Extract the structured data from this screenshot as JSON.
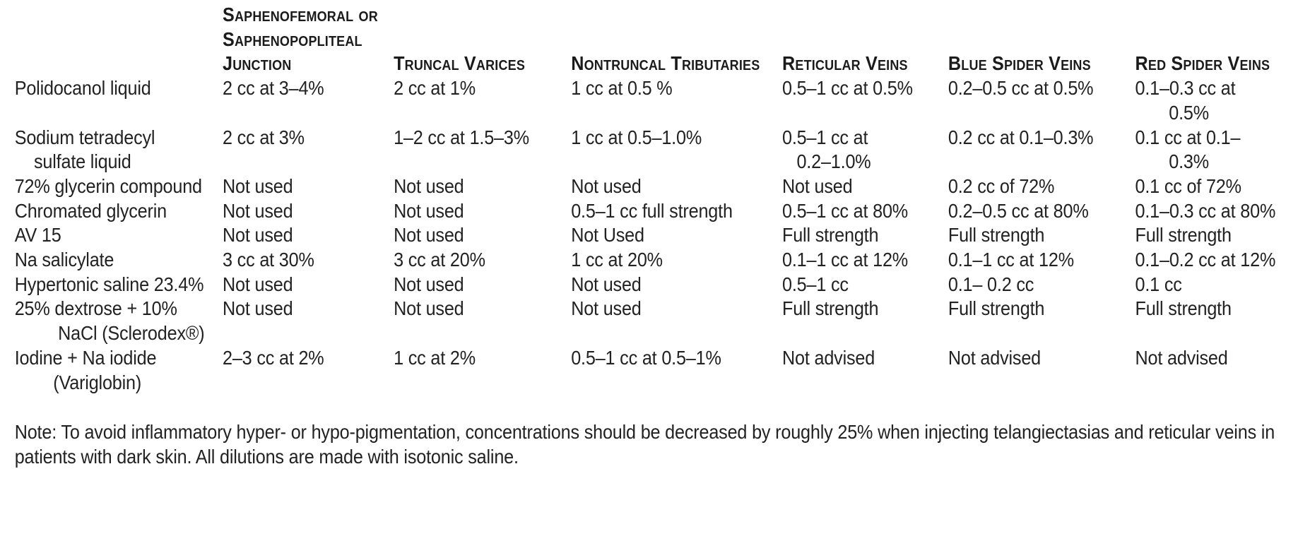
{
  "table": {
    "columns": [
      {
        "label": ""
      },
      {
        "label": "Saphenofemoral or\nSaphenopopliteal\nJunction"
      },
      {
        "label": "Truncal Varices"
      },
      {
        "label": "Nontruncal Tributaries"
      },
      {
        "label": "Reticular Veins"
      },
      {
        "label": "Blue Spider Veins"
      },
      {
        "label": "Red Spider Veins"
      }
    ],
    "rows": [
      {
        "agent": "Polidocanol liquid",
        "cells": [
          "2 cc at 3–4%",
          "2 cc at 1%",
          "1 cc at 0.5 %",
          "0.5–1 cc at 0.5%",
          "0.2–0.5 cc at 0.5%",
          "0.1–0.3 cc at\n       0.5%"
        ]
      },
      {
        "agent": "Sodium tetradecyl\n    sulfate liquid",
        "cells": [
          "2 cc at 3%",
          "1–2 cc at 1.5–3%",
          "1 cc at 0.5–1.0%",
          "0.5–1 cc at\n   0.2–1.0%",
          "0.2 cc at 0.1–0.3%",
          "0.1 cc at 0.1–\n       0.3%"
        ]
      },
      {
        "agent": "72% glycerin compound",
        "cells": [
          "Not used",
          "Not used",
          "Not used",
          "Not used",
          "0.2 cc of 72%",
          "0.1 cc of 72%"
        ]
      },
      {
        "agent": "Chromated glycerin",
        "cells": [
          "Not used",
          "Not used",
          "0.5–1 cc full strength",
          "0.5–1 cc at 80%",
          "0.2–0.5 cc at 80%",
          "0.1–0.3 cc at 80%"
        ]
      },
      {
        "agent": "AV 15",
        "cells": [
          "Not used",
          "Not used",
          "Not Used",
          "Full strength",
          "Full strength",
          "Full strength"
        ]
      },
      {
        "agent": "Na salicylate",
        "cells": [
          "3 cc at 30%",
          "3 cc at 20%",
          "1 cc at 20%",
          "0.1–1 cc at 12%",
          "0.1–1 cc at 12%",
          "0.1–0.2 cc at 12%"
        ]
      },
      {
        "agent": "Hypertonic saline 23.4%",
        "cells": [
          "Not used",
          "Not used",
          "Not used",
          "0.5–1 cc",
          "0.1– 0.2 cc",
          "0.1 cc"
        ]
      },
      {
        "agent": "25% dextrose + 10%\n         NaCl (Sclerodex®)",
        "cells": [
          "Not used",
          "Not used",
          "Not used",
          "Full strength",
          "Full strength",
          "Full strength"
        ]
      },
      {
        "agent": "Iodine + Na iodide\n        (Variglobin)",
        "cells": [
          "2–3 cc at 2%",
          "1 cc at 2%",
          "0.5–1 cc at 0.5–1%",
          "Not advised",
          "Not advised",
          "Not advised"
        ]
      }
    ]
  },
  "note": "Note: To avoid inflammatory hyper- or hypo-pigmentation, concentrations should be decreased by roughly 25% when injecting telangiectasias and reticular veins in patients with dark skin. All dilutions are made with isotonic saline."
}
